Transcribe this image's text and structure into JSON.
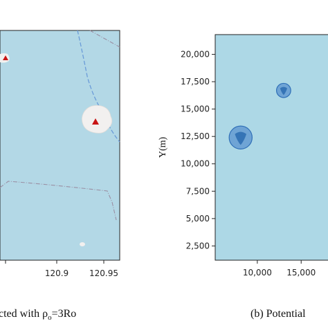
{
  "left_panel": {
    "x_ticks": [
      "120.9",
      "120.95"
    ],
    "caption": "cted with ρ",
    "caption_sub": "o",
    "caption_tail": "=3Ro",
    "colors": {
      "sea": "#b3d8e6",
      "land": "#f2f0ef",
      "marker": "#c81414",
      "road_blue": "#6a9bd8",
      "boundary": "#9a8fa3"
    }
  },
  "right_panel": {
    "y_axis_label": "Y(m)",
    "caption": "(b)  Potential",
    "colors": {
      "background": "#add8e6",
      "circle_fill": "#5b93cf",
      "circle_stroke": "#2f6fb7",
      "core_fill": "#2b6cb0"
    }
  },
  "chart_data": {
    "type": "scatter",
    "title": "",
    "xlabel": "",
    "ylabel": "Y(m)",
    "x_ticks": [
      "10,000",
      "15,000"
    ],
    "y_ticks": [
      "2,500",
      "5,000",
      "7,500",
      "10,000",
      "12,500",
      "15,000",
      "17,500",
      "20,000"
    ],
    "ylim": [
      1200,
      21800
    ],
    "xlim": [
      5200,
      19400
    ],
    "grid": false,
    "points": [
      {
        "x": 8100,
        "y": 12400,
        "radius": 1050
      },
      {
        "x": 13000,
        "y": 16700,
        "radius": 650
      }
    ]
  }
}
